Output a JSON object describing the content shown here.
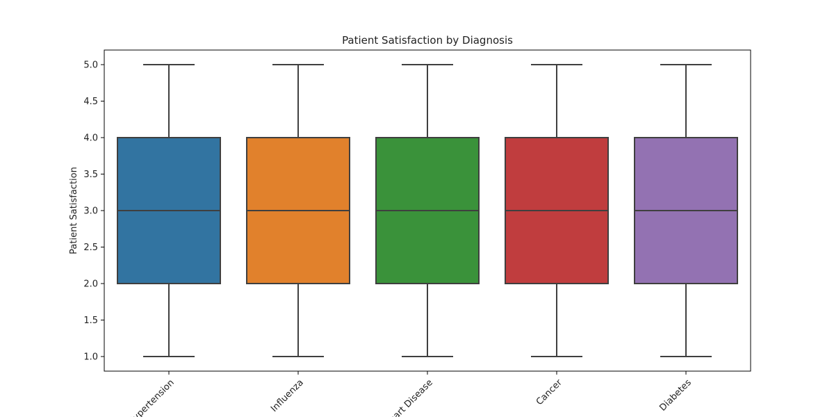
{
  "chart_data": {
    "type": "box",
    "title": "Patient Satisfaction by Diagnosis",
    "xlabel": "",
    "ylabel": "Patient Satisfaction",
    "ylim": [
      0.8,
      5.2
    ],
    "yticks": [
      1.0,
      1.5,
      2.0,
      2.5,
      3.0,
      3.5,
      4.0,
      4.5,
      5.0
    ],
    "ytick_labels": [
      "1.0",
      "1.5",
      "2.0",
      "2.5",
      "3.0",
      "3.5",
      "4.0",
      "4.5",
      "5.0"
    ],
    "grid": false,
    "legend": "none",
    "categories": [
      "Hypertension",
      "Influenza",
      "Heart Disease",
      "Cancer",
      "Diabetes"
    ],
    "category_label_rotation": 45,
    "boxes": [
      {
        "category": "Hypertension",
        "min": 1.0,
        "q1": 2.0,
        "median": 3.0,
        "q3": 4.0,
        "max": 5.0,
        "color": "#3274a1"
      },
      {
        "category": "Influenza",
        "min": 1.0,
        "q1": 2.0,
        "median": 3.0,
        "q3": 4.0,
        "max": 5.0,
        "color": "#e1812c"
      },
      {
        "category": "Heart Disease",
        "min": 1.0,
        "q1": 2.0,
        "median": 3.0,
        "q3": 4.0,
        "max": 5.0,
        "color": "#3a923a"
      },
      {
        "category": "Cancer",
        "min": 1.0,
        "q1": 2.0,
        "median": 3.0,
        "q3": 4.0,
        "max": 5.0,
        "color": "#c03d3e"
      },
      {
        "category": "Diabetes",
        "min": 1.0,
        "q1": 2.0,
        "median": 3.0,
        "q3": 4.0,
        "max": 5.0,
        "color": "#9372b2"
      }
    ],
    "line_color": "#3f3f3f"
  }
}
